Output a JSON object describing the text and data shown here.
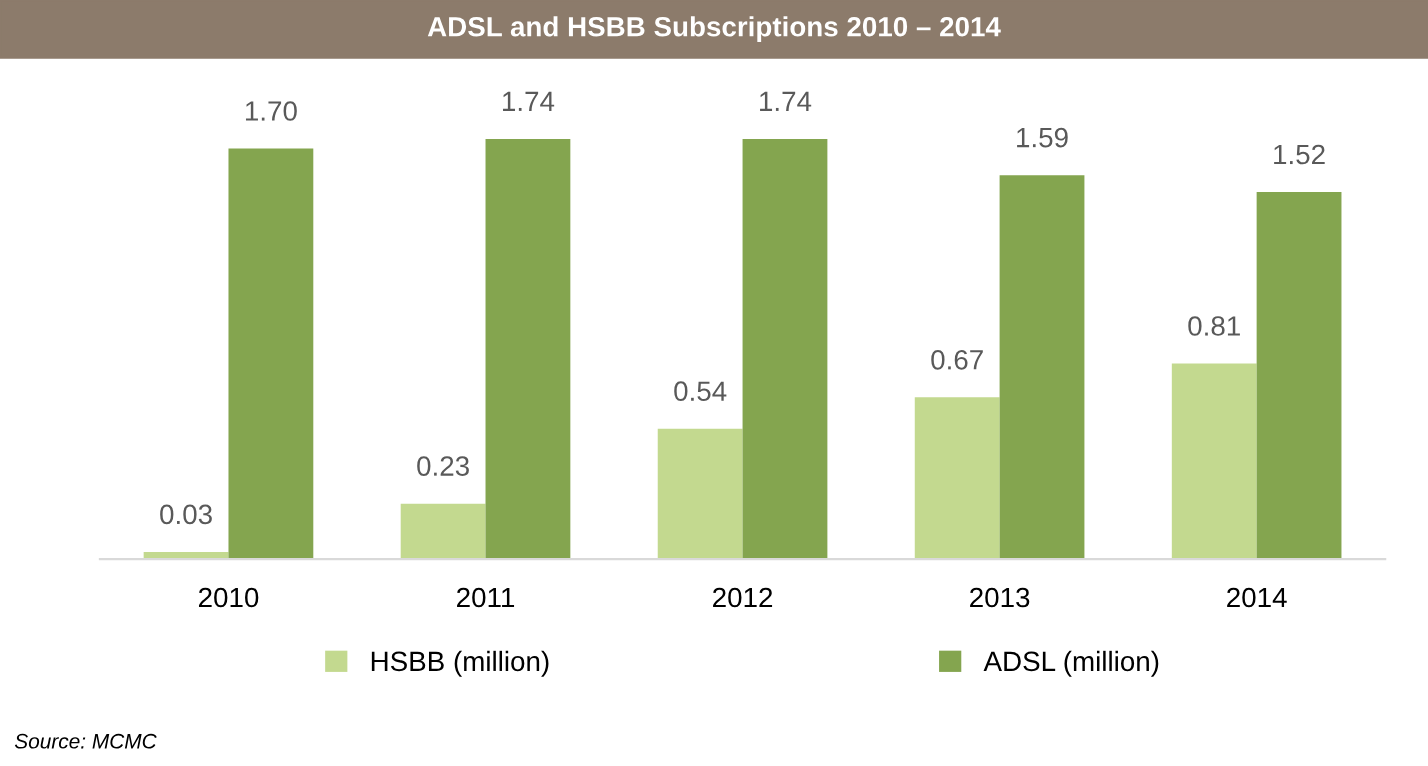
{
  "chart_data": {
    "type": "bar",
    "title": "ADSL and HSBB Subscriptions 2010 – 2014",
    "categories": [
      "2010",
      "2011",
      "2012",
      "2013",
      "2014"
    ],
    "series": [
      {
        "name": "HSBB (million)",
        "color": "#c3d98f",
        "values": [
          0.03,
          0.23,
          0.54,
          0.67,
          0.81
        ],
        "value_labels": [
          "0.03",
          "0.23",
          "0.54",
          "0.67",
          "0.81"
        ]
      },
      {
        "name": "ADSL (million)",
        "color": "#84a54f",
        "values": [
          1.7,
          1.74,
          1.74,
          1.59,
          1.52
        ],
        "value_labels": [
          "1.70",
          "1.74",
          "1.74",
          "1.59",
          "1.52"
        ]
      }
    ],
    "legend": "bottom",
    "grid": false,
    "annotations": [
      "Source: MCMC"
    ]
  }
}
